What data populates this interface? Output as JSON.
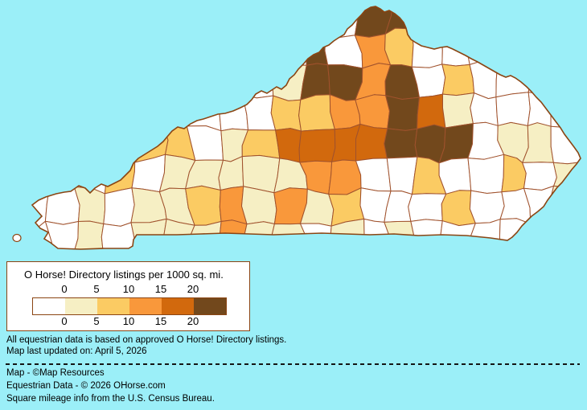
{
  "map": {
    "background_color": "#9BEFF8",
    "state": "Kentucky",
    "county_border_color": "#A0522D",
    "state_outline_color": "#8B4513"
  },
  "legend": {
    "title": "O Horse! Directory listings per 1000 sq. mi.",
    "tick_labels": [
      "0",
      "5",
      "10",
      "15",
      "20"
    ],
    "bucket_colors": [
      "#FFFFFF",
      "#F6EFC4",
      "#FBCB63",
      "#F9983B",
      "#D2690D",
      "#72481C"
    ],
    "box_border_color": "#8B4513"
  },
  "notes": {
    "line1": "All equestrian data is based on approved O Horse! Directory listings.",
    "line2": "Map last updated on: April 5, 2026"
  },
  "credits": {
    "line1": "Map - ©Map Resources",
    "line2": "Equestrian Data - © 2026 OHorse.com",
    "line3": "Square mileage info from the U.S. Census Bureau."
  },
  "chart_data": {
    "type": "heatmap",
    "title": "O Horse! Directory listings per 1000 sq. mi.",
    "region": "Kentucky, USA - county choropleth",
    "unit": "listings per 1000 sq. mi.",
    "legend_ticks": [
      0,
      5,
      10,
      15,
      20
    ],
    "value_scale": {
      "w": "0",
      "c": "0-5",
      "g": "5-10",
      "o": "10-15",
      "d": "15-20",
      "b": "20+"
    },
    "palette": {
      "w": "#FFFFFF",
      "c": "#F6EFC4",
      "g": "#FBCB63",
      "o": "#F9983B",
      "d": "#D2690D",
      "b": "#72481C"
    },
    "grid_origin": [
      28,
      2
    ],
    "cell_size": [
      34.85,
      39.125
    ],
    "grid": [
      "wwwwwwwwwwwwbbwwwwww",
      "wwwwwwwwwwbwogwwwwww",
      "wwwwwwwwwcbbobwgwwww",
      "wwwwwwwwwggoobdcwwww",
      "wwwgggwcgddddbbbwccw",
      "wwwgwcccccoowwgwwgwc",
      "wwcwccgococgwwwgwwwc",
      "wwcwcccoccwcwcwwwwww"
    ]
  }
}
